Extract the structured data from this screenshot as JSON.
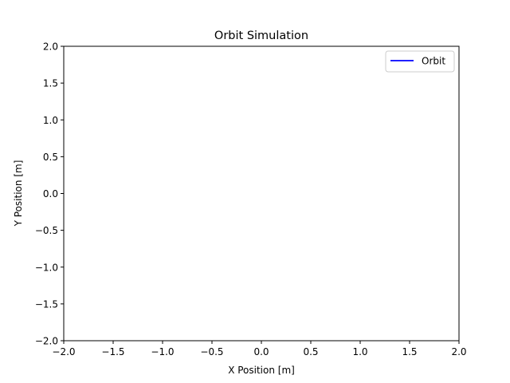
{
  "chart_data": {
    "type": "line",
    "title": "Orbit Simulation",
    "xlabel": "X Position [m]",
    "ylabel": "Y Position [m]",
    "xlim": [
      -2.0,
      2.0
    ],
    "ylim": [
      -2.0,
      2.0
    ],
    "xticks": [
      "−2.0",
      "−1.5",
      "−1.0",
      "−0.5",
      "0.0",
      "0.5",
      "1.0",
      "1.5",
      "2.0"
    ],
    "yticks": [
      "−2.0",
      "−1.5",
      "−1.0",
      "−0.5",
      "0.0",
      "0.5",
      "1.0",
      "1.5",
      "2.0"
    ],
    "grid": false,
    "legend_position": "top-right",
    "series": [
      {
        "name": "Orbit",
        "color": "#0000ff",
        "x": [],
        "y": []
      }
    ]
  }
}
